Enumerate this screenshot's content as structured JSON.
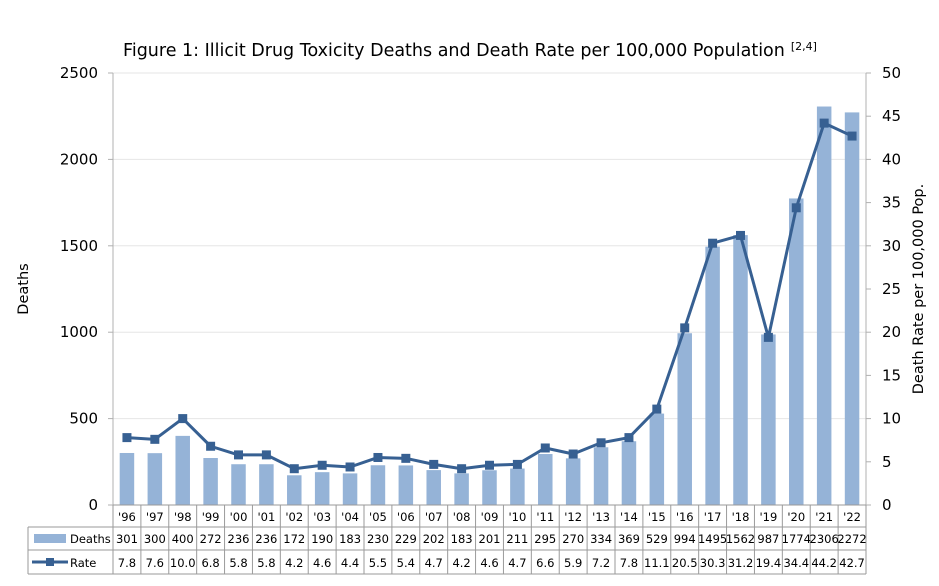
{
  "chart_data": {
    "type": "bar+line",
    "title": "Figure 1: Illicit Drug Toxicity Deaths and Death Rate per 100,000 Population",
    "title_superscript": "[2,4]",
    "ylabel_left": "Deaths",
    "ylabel_right": "Death Rate per 100,000 Pop.",
    "ylim_left": [
      0,
      2500
    ],
    "ylim_right": [
      0,
      50
    ],
    "yticks_left": [
      "0",
      "500",
      "1000",
      "1500",
      "2000",
      "2500"
    ],
    "yticks_right": [
      "0",
      "5",
      "10",
      "15",
      "20",
      "25",
      "30",
      "35",
      "40",
      "45",
      "50"
    ],
    "grid": "horizontal",
    "legend": "data-table",
    "categories": [
      "'96",
      "'97",
      "'98",
      "'99",
      "'00",
      "'01",
      "'02",
      "'03",
      "'04",
      "'05",
      "'06",
      "'07",
      "'08",
      "'09",
      "'10",
      "'11",
      "'12",
      "'13",
      "'14",
      "'15",
      "'16",
      "'17",
      "'18",
      "'19",
      "'20",
      "'21",
      "'22"
    ],
    "series": [
      {
        "name": "Deaths",
        "kind": "bar",
        "axis": "left",
        "color": "#95b3d7",
        "values": [
          301,
          300,
          400,
          272,
          236,
          236,
          172,
          190,
          183,
          230,
          229,
          202,
          183,
          201,
          211,
          295,
          270,
          334,
          369,
          529,
          994,
          1495,
          1562,
          987,
          1774,
          2306,
          2272
        ],
        "labels": [
          "301",
          "300",
          "400",
          "272",
          "236",
          "236",
          "172",
          "190",
          "183",
          "230",
          "229",
          "202",
          "183",
          "201",
          "211",
          "295",
          "270",
          "334",
          "369",
          "529",
          "994",
          "1495",
          "1562",
          "987",
          "1774",
          "2306",
          "2272"
        ]
      },
      {
        "name": "Rate",
        "kind": "line",
        "axis": "right",
        "color": "#376092",
        "values": [
          7.8,
          7.6,
          10.0,
          6.8,
          5.8,
          5.8,
          4.2,
          4.6,
          4.4,
          5.5,
          5.4,
          4.7,
          4.2,
          4.6,
          4.7,
          6.6,
          5.9,
          7.2,
          7.8,
          11.1,
          20.5,
          30.3,
          31.2,
          19.4,
          34.4,
          44.2,
          42.7
        ],
        "labels": [
          "7.8",
          "7.6",
          "10.0",
          "6.8",
          "5.8",
          "5.8",
          "4.2",
          "4.6",
          "4.4",
          "5.5",
          "5.4",
          "4.7",
          "4.2",
          "4.6",
          "4.7",
          "6.6",
          "5.9",
          "7.2",
          "7.8",
          "11.1",
          "20.5",
          "30.3",
          "31.2",
          "19.4",
          "34.4",
          "44.2",
          "42.7"
        ]
      }
    ]
  }
}
